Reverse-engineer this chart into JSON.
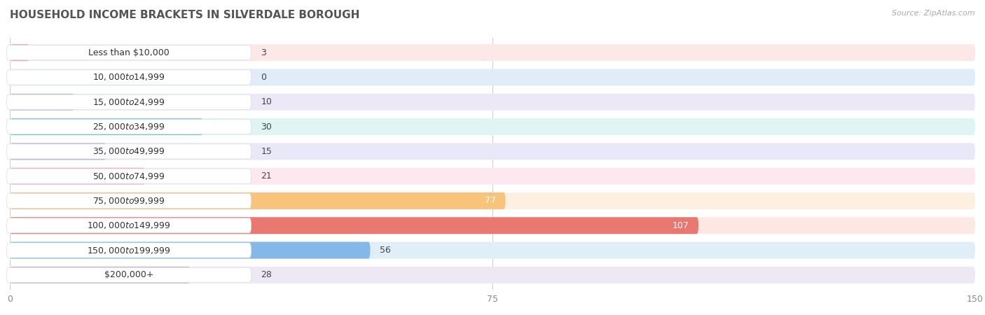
{
  "title": "HOUSEHOLD INCOME BRACKETS IN SILVERDALE BOROUGH",
  "source": "Source: ZipAtlas.com",
  "categories": [
    "Less than $10,000",
    "$10,000 to $14,999",
    "$15,000 to $24,999",
    "$25,000 to $34,999",
    "$35,000 to $49,999",
    "$50,000 to $74,999",
    "$75,000 to $99,999",
    "$100,000 to $149,999",
    "$150,000 to $199,999",
    "$200,000+"
  ],
  "values": [
    3,
    0,
    10,
    30,
    15,
    21,
    77,
    107,
    56,
    28
  ],
  "bar_colors": [
    "#f4a0a0",
    "#a8c4e8",
    "#c8b8e8",
    "#74cece",
    "#b0aee8",
    "#f8aac4",
    "#f8c47c",
    "#e87870",
    "#84b8e8",
    "#c8b4dc"
  ],
  "bar_bg_colors": [
    "#fde8e8",
    "#e0ecf8",
    "#ede8f8",
    "#e0f4f4",
    "#e8e8f8",
    "#fde8f0",
    "#fdf0e0",
    "#fde8e4",
    "#e0eef8",
    "#ede8f4"
  ],
  "xlim": [
    0,
    150
  ],
  "xticks": [
    0,
    75,
    150
  ],
  "background_color": "#ffffff",
  "row_bg_color": "#f0f0f0",
  "title_fontsize": 11,
  "label_fontsize": 9,
  "value_fontsize": 9,
  "white_label_bg": true
}
